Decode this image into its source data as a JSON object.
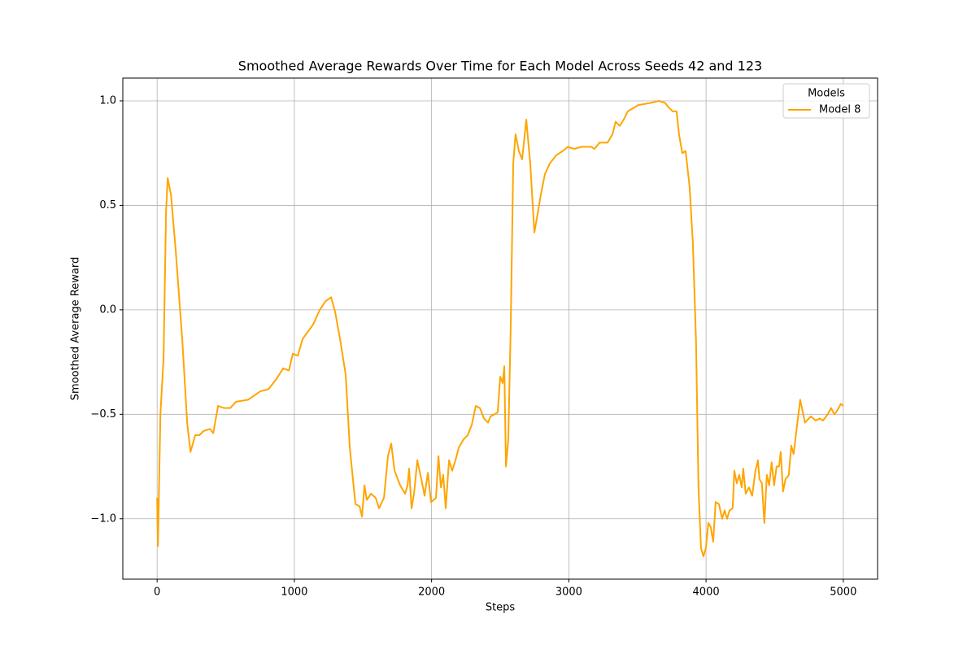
{
  "chart_data": {
    "type": "line",
    "title": "Smoothed Average Rewards Over Time for Each Model Across Seeds 42 and 123",
    "x_label": "Steps",
    "y_label": "Smoothed Average Reward",
    "legend_title": "Models",
    "legend_position": "upper right",
    "grid": true,
    "xlim": [
      -250,
      5250
    ],
    "xticks": [
      0,
      1000,
      2000,
      3000,
      4000,
      5000
    ],
    "ylim": [
      -1.289,
      1.109
    ],
    "yticks": [
      {
        "value": -1,
        "label": "−1.0"
      },
      {
        "value": -0.5,
        "label": "−0.5"
      },
      {
        "value": 0,
        "label": "0.0"
      },
      {
        "value": 0.5,
        "label": "0.5"
      },
      {
        "value": 1,
        "label": "1.0"
      }
    ],
    "x": [
      0,
      6,
      24,
      47,
      65,
      77,
      101,
      136,
      184,
      219,
      243,
      278,
      308,
      338,
      385,
      409,
      444,
      486,
      533,
      575,
      664,
      752,
      811,
      871,
      918,
      960,
      989,
      1025,
      1060,
      1137,
      1185,
      1226,
      1268,
      1297,
      1333,
      1374,
      1404,
      1445,
      1475,
      1493,
      1511,
      1528,
      1558,
      1593,
      1617,
      1653,
      1682,
      1706,
      1730,
      1771,
      1807,
      1825,
      1836,
      1854,
      1872,
      1896,
      1925,
      1949,
      1973,
      1996,
      2032,
      2050,
      2068,
      2085,
      2103,
      2127,
      2150,
      2174,
      2198,
      2233,
      2263,
      2293,
      2322,
      2352,
      2382,
      2411,
      2429,
      2459,
      2482,
      2500,
      2518,
      2530,
      2542,
      2559,
      2577,
      2595,
      2612,
      2636,
      2660,
      2690,
      2719,
      2749,
      2773,
      2796,
      2826,
      2861,
      2909,
      2956,
      2992,
      3039,
      3092,
      3164,
      3187,
      3223,
      3282,
      3318,
      3341,
      3371,
      3400,
      3430,
      3507,
      3596,
      3655,
      3702,
      3726,
      3756,
      3785,
      3803,
      3827,
      3851,
      3880,
      3904,
      3927,
      3945,
      3963,
      3981,
      3999,
      4017,
      4034,
      4052,
      4070,
      4094,
      4117,
      4135,
      4153,
      4171,
      4194,
      4206,
      4224,
      4242,
      4260,
      4271,
      4289,
      4313,
      4336,
      4360,
      4378,
      4389,
      4407,
      4425,
      4443,
      4460,
      4478,
      4496,
      4514,
      4532,
      4544,
      4561,
      4579,
      4603,
      4621,
      4638,
      4662,
      4686,
      4721,
      4763,
      4799,
      4828,
      4852,
      4887,
      4911,
      4935,
      4958,
      4982,
      5000
    ],
    "series": [
      {
        "name": "Model 8",
        "color": "#ffa500",
        "values": [
          -0.9,
          -1.13,
          -0.5,
          -0.23,
          0.47,
          0.63,
          0.55,
          0.28,
          -0.15,
          -0.54,
          -0.68,
          -0.6,
          -0.6,
          -0.58,
          -0.57,
          -0.59,
          -0.46,
          -0.47,
          -0.47,
          -0.44,
          -0.43,
          -0.39,
          -0.38,
          -0.33,
          -0.28,
          -0.29,
          -0.21,
          -0.22,
          -0.14,
          -0.07,
          0.0,
          0.04,
          0.06,
          -0.01,
          -0.14,
          -0.31,
          -0.66,
          -0.93,
          -0.94,
          -0.99,
          -0.84,
          -0.91,
          -0.88,
          -0.9,
          -0.95,
          -0.9,
          -0.7,
          -0.64,
          -0.77,
          -0.84,
          -0.88,
          -0.84,
          -0.76,
          -0.95,
          -0.88,
          -0.72,
          -0.81,
          -0.89,
          -0.78,
          -0.92,
          -0.9,
          -0.7,
          -0.85,
          -0.79,
          -0.95,
          -0.72,
          -0.77,
          -0.72,
          -0.66,
          -0.62,
          -0.6,
          -0.55,
          -0.46,
          -0.47,
          -0.52,
          -0.54,
          -0.51,
          -0.5,
          -0.49,
          -0.32,
          -0.35,
          -0.27,
          -0.75,
          -0.62,
          -0.07,
          0.7,
          0.84,
          0.76,
          0.72,
          0.91,
          0.7,
          0.37,
          0.46,
          0.55,
          0.65,
          0.7,
          0.74,
          0.76,
          0.78,
          0.77,
          0.78,
          0.78,
          0.77,
          0.8,
          0.8,
          0.84,
          0.9,
          0.88,
          0.91,
          0.95,
          0.98,
          0.99,
          1.0,
          0.99,
          0.97,
          0.95,
          0.95,
          0.84,
          0.75,
          0.76,
          0.59,
          0.32,
          -0.15,
          -0.85,
          -1.14,
          -1.18,
          -1.14,
          -1.02,
          -1.04,
          -1.11,
          -0.92,
          -0.93,
          -1.0,
          -0.96,
          -1.0,
          -0.96,
          -0.95,
          -0.77,
          -0.83,
          -0.79,
          -0.85,
          -0.76,
          -0.88,
          -0.85,
          -0.89,
          -0.77,
          -0.72,
          -0.81,
          -0.83,
          -1.02,
          -0.79,
          -0.84,
          -0.73,
          -0.84,
          -0.75,
          -0.75,
          -0.68,
          -0.87,
          -0.81,
          -0.79,
          -0.65,
          -0.69,
          -0.56,
          -0.43,
          -0.54,
          -0.51,
          -0.53,
          -0.52,
          -0.53,
          -0.5,
          -0.47,
          -0.5,
          -0.48,
          -0.45,
          -0.46
        ]
      }
    ]
  }
}
